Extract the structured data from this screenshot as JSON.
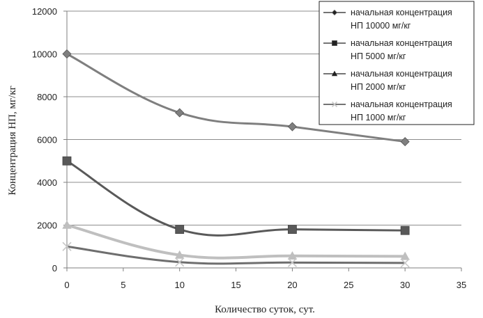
{
  "chart_data": {
    "type": "line",
    "title": "",
    "xlabel": "Количество суток, сут.",
    "ylabel": "Концентрация НП, мг/кг",
    "xlim": [
      0,
      35
    ],
    "ylim": [
      0,
      12000
    ],
    "xticks": [
      0,
      5,
      10,
      15,
      20,
      25,
      30,
      35
    ],
    "yticks": [
      0,
      2000,
      4000,
      6000,
      8000,
      10000,
      12000
    ],
    "grid": "horizontal",
    "legend_position": "top-right",
    "series": [
      {
        "name_line1": "начальная концентрация",
        "name_line2": "НП 10000 мг/кг",
        "marker": "diamond",
        "color": "#7f7f7f",
        "x": [
          0,
          10,
          20,
          30
        ],
        "y": [
          10000,
          7250,
          6600,
          5900
        ]
      },
      {
        "name_line1": "начальная концентрация",
        "name_line2": "НП 5000 мг/кг",
        "marker": "square",
        "color": "#595959",
        "x": [
          0,
          10,
          20,
          30
        ],
        "y": [
          5000,
          1800,
          1800,
          1750
        ]
      },
      {
        "name_line1": "начальная концентрация",
        "name_line2": "НП 2000 мг/кг",
        "marker": "triangle",
        "color": "#bfbfbf",
        "x": [
          0,
          10,
          20,
          30
        ],
        "y": [
          2000,
          600,
          560,
          540
        ]
      },
      {
        "name_line1": "начальная концентрация",
        "name_line2": "НП 1000 мг/кг",
        "marker": "x",
        "color": "#6e6e6e",
        "x": [
          0,
          10,
          20,
          30
        ],
        "y": [
          1000,
          270,
          250,
          230
        ]
      }
    ]
  }
}
